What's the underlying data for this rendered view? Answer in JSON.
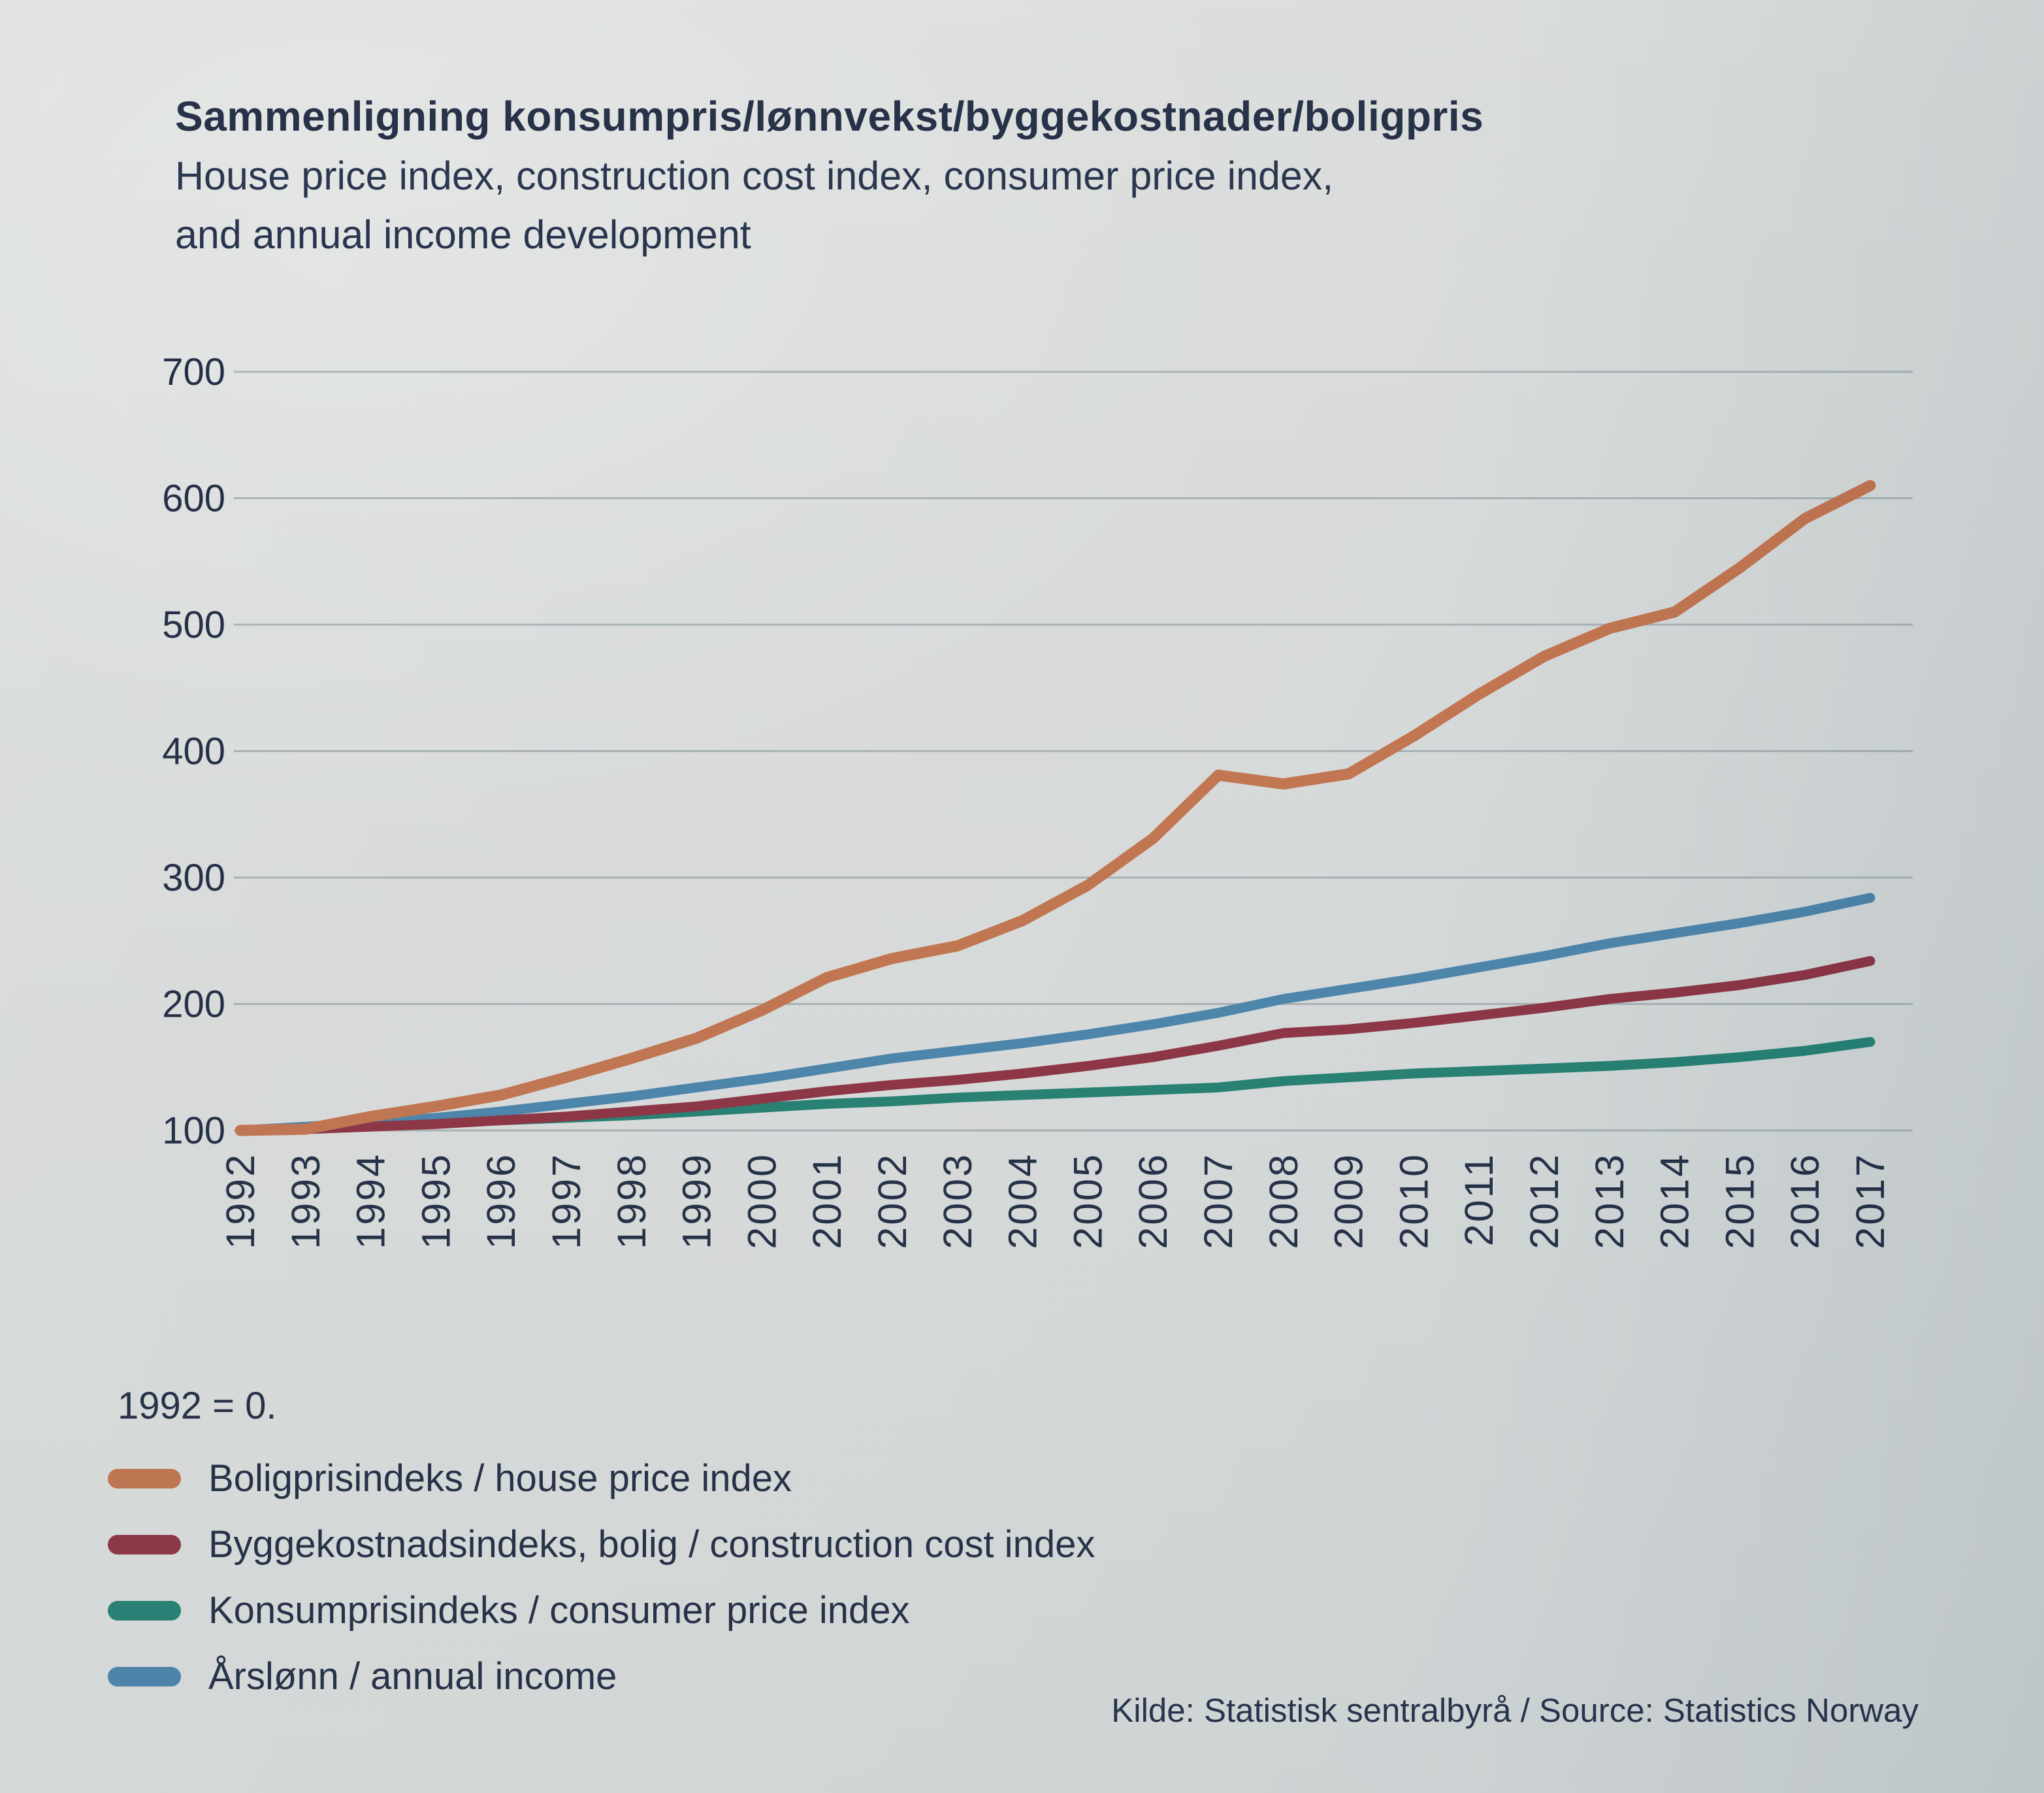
{
  "header": {
    "title": "Sammenligning konsumpris/lønnvekst/byggekostnader/boligpris",
    "subtitle_line1": "House price index, construction cost index, consumer price index,",
    "subtitle_line2": "and annual income development"
  },
  "note": "1992 = 0.",
  "source": "Kilde: Statistisk sentralbyrå  / Source: Statistics Norway",
  "colors": {
    "text": "#1c2840",
    "gridline": "#9aa6a9",
    "background": "#d8dbda",
    "house_price": "#c1714a",
    "construction_cost": "#8a2e3e",
    "consumer_price": "#1f7d6f",
    "annual_income": "#4781a9"
  },
  "chart_data": {
    "type": "line",
    "x": [
      1992,
      1993,
      1994,
      1995,
      1996,
      1997,
      1998,
      1999,
      2000,
      2001,
      2002,
      2003,
      2004,
      2005,
      2006,
      2007,
      2008,
      2009,
      2010,
      2011,
      2012,
      2013,
      2014,
      2015,
      2016,
      2017
    ],
    "ylim": [
      100,
      700
    ],
    "yticks": [
      700,
      600,
      500,
      400,
      300,
      200,
      100
    ],
    "grid": "horizontal-only",
    "legend_position": "below-left",
    "baseline_note": "1992 = 0.",
    "series": [
      {
        "name": "Boligprisindeks / house price index",
        "color": "#c1714a",
        "values": [
          100,
          101,
          111,
          119,
          128,
          142,
          157,
          173,
          195,
          221,
          236,
          246,
          266,
          294,
          331,
          381,
          374,
          382,
          412,
          445,
          475,
          497,
          510,
          545,
          584,
          610
        ]
      },
      {
        "name": "Byggekostnadsindeks, bolig / construction cost index",
        "color": "#8a2e3e",
        "values": [
          100,
          101,
          103,
          105,
          108,
          111,
          115,
          119,
          125,
          131,
          136,
          140,
          145,
          151,
          158,
          167,
          177,
          180,
          185,
          191,
          197,
          204,
          209,
          215,
          223,
          234
        ]
      },
      {
        "name": "Konsumprisindeks / consumer price index",
        "color": "#1f7d6f",
        "values": [
          100,
          102,
          104,
          106,
          108,
          110,
          112,
          115,
          118,
          121,
          123,
          126,
          128,
          130,
          132,
          134,
          139,
          142,
          145,
          147,
          149,
          151,
          154,
          158,
          163,
          170
        ]
      },
      {
        "name": "Årslønn / annual income",
        "color": "#4781a9",
        "values": [
          100,
          103,
          106,
          110,
          115,
          121,
          127,
          134,
          141,
          149,
          157,
          163,
          169,
          176,
          184,
          193,
          204,
          212,
          220,
          229,
          238,
          248,
          256,
          264,
          273,
          284
        ]
      }
    ]
  }
}
